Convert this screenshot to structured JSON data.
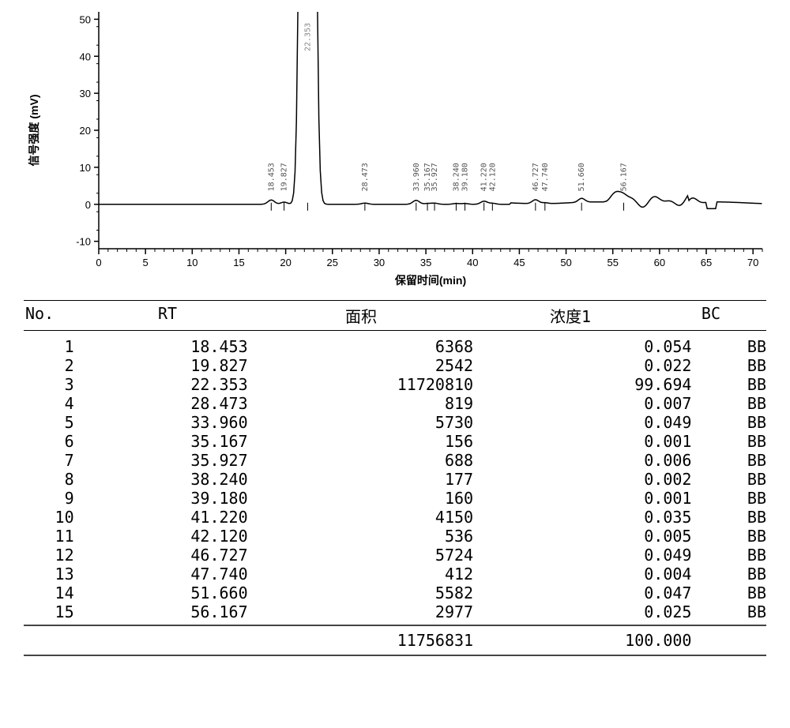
{
  "chart": {
    "type": "line",
    "xlabel": "保留时间(min)",
    "ylabel": "信号强度 (mV)",
    "xlim": [
      0,
      71
    ],
    "ylim": [
      -12,
      52
    ],
    "xtick_major": [
      0,
      5,
      10,
      15,
      20,
      25,
      30,
      35,
      40,
      45,
      50,
      55,
      60,
      65,
      70
    ],
    "ytick_major": [
      -10,
      0,
      10,
      20,
      30,
      40,
      50
    ],
    "label_fontsize": 14,
    "tick_fontsize": 13,
    "peak_label_fontsize": 10,
    "line_color": "#000000",
    "axis_color": "#000000",
    "background_color": "#ffffff",
    "line_width": 1.5,
    "axis_width": 1.5,
    "main_peak": {
      "rt": 22.353,
      "clip_top": true,
      "half_width": 0.9
    },
    "peak_labels": [
      {
        "rt": 18.453,
        "label": "18.453"
      },
      {
        "rt": 19.827,
        "label": "19.827"
      },
      {
        "rt": 22.353,
        "label": "22.353"
      },
      {
        "rt": 28.473,
        "label": "28.473"
      },
      {
        "rt": 33.96,
        "label": "33.960"
      },
      {
        "rt": 35.167,
        "label": "35.167"
      },
      {
        "rt": 35.927,
        "label": "35.927"
      },
      {
        "rt": 38.24,
        "label": "38.240"
      },
      {
        "rt": 39.18,
        "label": "39.180"
      },
      {
        "rt": 41.22,
        "label": "41.220"
      },
      {
        "rt": 42.12,
        "label": "42.120"
      },
      {
        "rt": 46.727,
        "label": "46.727"
      },
      {
        "rt": 47.74,
        "label": "47.740"
      },
      {
        "rt": 51.66,
        "label": "51.660"
      },
      {
        "rt": 56.167,
        "label": "56.167"
      }
    ]
  },
  "table": {
    "headers": {
      "no": "No.",
      "rt": "RT",
      "area": "面积",
      "conc": "浓度1",
      "bc": "BC"
    },
    "rows": [
      {
        "no": "1",
        "rt": "18.453",
        "area": "6368",
        "conc": "0.054",
        "bc": "BB"
      },
      {
        "no": "2",
        "rt": "19.827",
        "area": "2542",
        "conc": "0.022",
        "bc": "BB"
      },
      {
        "no": "3",
        "rt": "22.353",
        "area": "11720810",
        "conc": "99.694",
        "bc": "BB"
      },
      {
        "no": "4",
        "rt": "28.473",
        "area": "819",
        "conc": "0.007",
        "bc": "BB"
      },
      {
        "no": "5",
        "rt": "33.960",
        "area": "5730",
        "conc": "0.049",
        "bc": "BB"
      },
      {
        "no": "6",
        "rt": "35.167",
        "area": "156",
        "conc": "0.001",
        "bc": "BB"
      },
      {
        "no": "7",
        "rt": "35.927",
        "area": "688",
        "conc": "0.006",
        "bc": "BB"
      },
      {
        "no": "8",
        "rt": "38.240",
        "area": "177",
        "conc": "0.002",
        "bc": "BB"
      },
      {
        "no": "9",
        "rt": "39.180",
        "area": "160",
        "conc": "0.001",
        "bc": "BB"
      },
      {
        "no": "10",
        "rt": "41.220",
        "area": "4150",
        "conc": "0.035",
        "bc": "BB"
      },
      {
        "no": "11",
        "rt": "42.120",
        "area": "536",
        "conc": "0.005",
        "bc": "BB"
      },
      {
        "no": "12",
        "rt": "46.727",
        "area": "5724",
        "conc": "0.049",
        "bc": "BB"
      },
      {
        "no": "13",
        "rt": "47.740",
        "area": "412",
        "conc": "0.004",
        "bc": "BB"
      },
      {
        "no": "14",
        "rt": "51.660",
        "area": "5582",
        "conc": "0.047",
        "bc": "BB"
      },
      {
        "no": "15",
        "rt": "56.167",
        "area": "2977",
        "conc": "0.025",
        "bc": "BB"
      }
    ],
    "totals": {
      "area": "11756831",
      "conc": "100.000"
    }
  }
}
